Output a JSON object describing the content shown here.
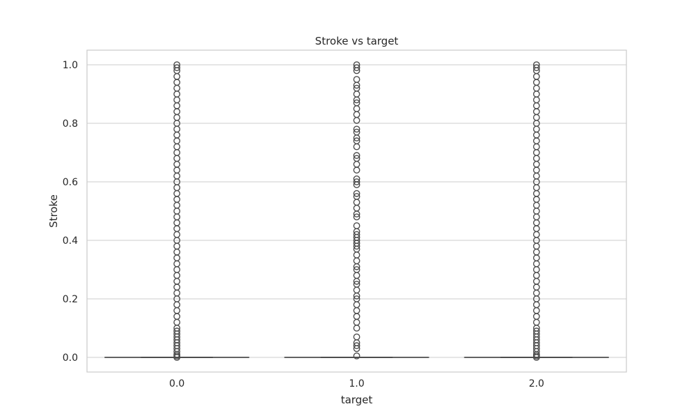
{
  "chart_data": {
    "type": "box",
    "title": "Stroke vs target",
    "xlabel": "target",
    "ylabel": "Stroke",
    "categories": [
      "0.0",
      "1.0",
      "2.0"
    ],
    "ylim": [
      -0.05,
      1.05
    ],
    "yticks": [
      0.0,
      0.2,
      0.4,
      0.6,
      0.8,
      1.0
    ],
    "ytick_labels": [
      "0.0",
      "0.2",
      "0.4",
      "0.6",
      "0.8",
      "1.0"
    ],
    "grid": true,
    "box_color": "#4d4d4d",
    "grid_color": "#cccccc",
    "boxes": [
      {
        "category": "0.0",
        "q1": 0.0,
        "median": 0.0,
        "q3": 0.0,
        "whisker_low": 0.0,
        "whisker_high": 0.0
      },
      {
        "category": "1.0",
        "q1": 0.0,
        "median": 0.0,
        "q3": 0.0,
        "whisker_low": 0.0,
        "whisker_high": 0.0
      },
      {
        "category": "2.0",
        "q1": 0.0,
        "median": 0.0,
        "q3": 0.0,
        "whisker_low": 0.0,
        "whisker_high": 0.0
      }
    ],
    "outliers": [
      {
        "category": "0.0",
        "values": [
          0.0,
          0.005,
          0.01,
          0.02,
          0.03,
          0.04,
          0.05,
          0.06,
          0.07,
          0.08,
          0.09,
          0.1,
          0.12,
          0.14,
          0.16,
          0.18,
          0.2,
          0.22,
          0.24,
          0.26,
          0.28,
          0.3,
          0.32,
          0.34,
          0.36,
          0.38,
          0.4,
          0.42,
          0.44,
          0.46,
          0.48,
          0.5,
          0.52,
          0.54,
          0.56,
          0.58,
          0.6,
          0.62,
          0.64,
          0.66,
          0.68,
          0.7,
          0.72,
          0.74,
          0.76,
          0.78,
          0.8,
          0.82,
          0.84,
          0.86,
          0.88,
          0.9,
          0.92,
          0.94,
          0.96,
          0.98,
          0.99,
          1.0
        ]
      },
      {
        "category": "1.0",
        "values": [
          0.005,
          0.03,
          0.04,
          0.05,
          0.07,
          0.1,
          0.12,
          0.14,
          0.16,
          0.18,
          0.2,
          0.21,
          0.23,
          0.25,
          0.26,
          0.28,
          0.3,
          0.31,
          0.33,
          0.35,
          0.37,
          0.38,
          0.39,
          0.4,
          0.41,
          0.42,
          0.43,
          0.45,
          0.48,
          0.49,
          0.51,
          0.53,
          0.55,
          0.56,
          0.59,
          0.6,
          0.61,
          0.64,
          0.66,
          0.68,
          0.69,
          0.72,
          0.74,
          0.75,
          0.77,
          0.78,
          0.81,
          0.83,
          0.85,
          0.87,
          0.88,
          0.9,
          0.92,
          0.93,
          0.95,
          0.98,
          0.99,
          1.0
        ]
      },
      {
        "category": "2.0",
        "values": [
          0.0,
          0.005,
          0.01,
          0.02,
          0.03,
          0.04,
          0.05,
          0.06,
          0.07,
          0.08,
          0.09,
          0.1,
          0.12,
          0.14,
          0.16,
          0.18,
          0.2,
          0.22,
          0.24,
          0.26,
          0.28,
          0.3,
          0.32,
          0.34,
          0.36,
          0.38,
          0.4,
          0.42,
          0.44,
          0.46,
          0.48,
          0.5,
          0.52,
          0.54,
          0.56,
          0.58,
          0.6,
          0.62,
          0.64,
          0.66,
          0.68,
          0.7,
          0.72,
          0.74,
          0.76,
          0.78,
          0.8,
          0.82,
          0.84,
          0.86,
          0.88,
          0.9,
          0.92,
          0.94,
          0.96,
          0.98,
          0.99,
          1.0
        ]
      }
    ]
  }
}
